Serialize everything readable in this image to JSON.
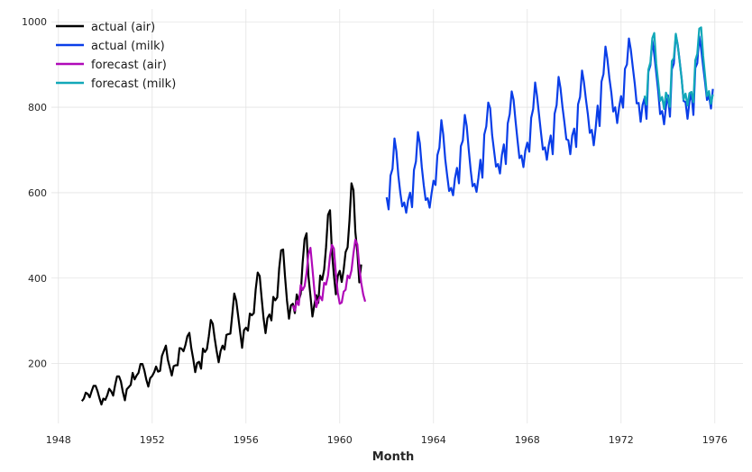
{
  "chart_data": {
    "type": "line",
    "title": "",
    "xlabel": "Month",
    "ylabel": "",
    "xlim": [
      1947.7,
      1977.2
    ],
    "ylim": [
      60,
      1030
    ],
    "x_ticks": [
      1948,
      1952,
      1956,
      1960,
      1964,
      1968,
      1972,
      1976
    ],
    "y_ticks": [
      200,
      400,
      600,
      800,
      1000
    ],
    "grid": true,
    "legend_position": "top-left",
    "series": [
      {
        "name": "actual (air)",
        "color": "#000000",
        "start": 1949.0,
        "step": 0.0833333,
        "values": [
          112,
          118,
          132,
          129,
          121,
          135,
          148,
          148,
          136,
          119,
          104,
          118,
          115,
          126,
          141,
          135,
          125,
          149,
          170,
          170,
          158,
          133,
          114,
          140,
          145,
          150,
          178,
          163,
          172,
          178,
          199,
          199,
          184,
          162,
          146,
          166,
          171,
          180,
          193,
          181,
          183,
          218,
          230,
          242,
          209,
          191,
          172,
          194,
          196,
          196,
          236,
          235,
          229,
          243,
          264,
          272,
          237,
          211,
          180,
          201,
          204,
          188,
          235,
          227,
          234,
          264,
          302,
          293,
          259,
          229,
          203,
          229,
          242,
          233,
          267,
          269,
          270,
          315,
          364,
          347,
          312,
          274,
          237,
          278,
          284,
          277,
          317,
          313,
          318,
          374,
          413,
          405,
          355,
          306,
          271,
          306,
          315,
          301,
          356,
          348,
          355,
          422,
          465,
          467,
          404,
          347,
          305,
          336,
          340,
          318,
          362,
          348,
          363,
          435,
          491,
          505,
          404,
          359,
          310,
          337,
          360,
          342,
          406,
          396,
          420,
          472,
          548,
          559,
          463,
          407,
          362,
          405,
          417,
          391,
          419,
          461,
          472,
          535,
          622,
          606,
          508,
          461,
          390,
          432
        ]
      },
      {
        "name": "actual (milk)",
        "color": "#0a3ee8",
        "start": 1962.0,
        "step": 0.0833333,
        "values": [
          589,
          561,
          640,
          656,
          727,
          697,
          640,
          599,
          568,
          577,
          553,
          582,
          600,
          566,
          653,
          673,
          742,
          716,
          660,
          617,
          583,
          587,
          565,
          598,
          628,
          618,
          688,
          705,
          770,
          736,
          678,
          639,
          604,
          611,
          594,
          634,
          658,
          622,
          709,
          722,
          782,
          756,
          702,
          653,
          615,
          621,
          602,
          635,
          677,
          635,
          736,
          755,
          811,
          798,
          735,
          697,
          661,
          667,
          645,
          688,
          713,
          667,
          762,
          784,
          837,
          817,
          767,
          722,
          681,
          687,
          660,
          698,
          717,
          696,
          775,
          796,
          858,
          826,
          783,
          740,
          701,
          706,
          677,
          711,
          734,
          690,
          785,
          805,
          871,
          845,
          801,
          764,
          725,
          723,
          690,
          734,
          750,
          707,
          807,
          824,
          886,
          859,
          819,
          783,
          740,
          747,
          711,
          751,
          804,
          756,
          860,
          878,
          942,
          913,
          869,
          834,
          790,
          800,
          763,
          800,
          826,
          799,
          890,
          900,
          961,
          935,
          894,
          855,
          809,
          810,
          766,
          805,
          821,
          773,
          883,
          898,
          957,
          924,
          881,
          837,
          784,
          791,
          760,
          802,
          828,
          778,
          889,
          902,
          969,
          947,
          908,
          867,
          815,
          812,
          773,
          813,
          834,
          782,
          892,
          903,
          966,
          937,
          896,
          858,
          817,
          827,
          797,
          843
        ]
      },
      {
        "name": "forecast (air)",
        "color": "#b00ab8",
        "start": 1958.0,
        "step": 0.0833333,
        "values": [
          336,
          324,
          346,
          337,
          384,
          372,
          381,
          412,
          456,
          471,
          422,
          373,
          332,
          349,
          357,
          348,
          389,
          385,
          406,
          452,
          478,
          469,
          410,
          366,
          340,
          343,
          368,
          373,
          406,
          400,
          418,
          458,
          490,
          479,
          427,
          389,
          362,
          345
        ]
      },
      {
        "name": "forecast (milk)",
        "color": "#12a8b8",
        "start": 1973.0,
        "step": 0.0833333,
        "values": [
          827,
          806,
          888,
          905,
          962,
          974,
          902,
          859,
          815,
          824,
          796,
          834,
          822,
          801,
          908,
          915,
          972,
          945,
          906,
          865,
          818,
          832,
          804,
          833,
          836,
          812,
          910,
          925,
          984,
          987,
          921,
          873,
          826,
          838,
          808,
          830
        ]
      }
    ]
  }
}
